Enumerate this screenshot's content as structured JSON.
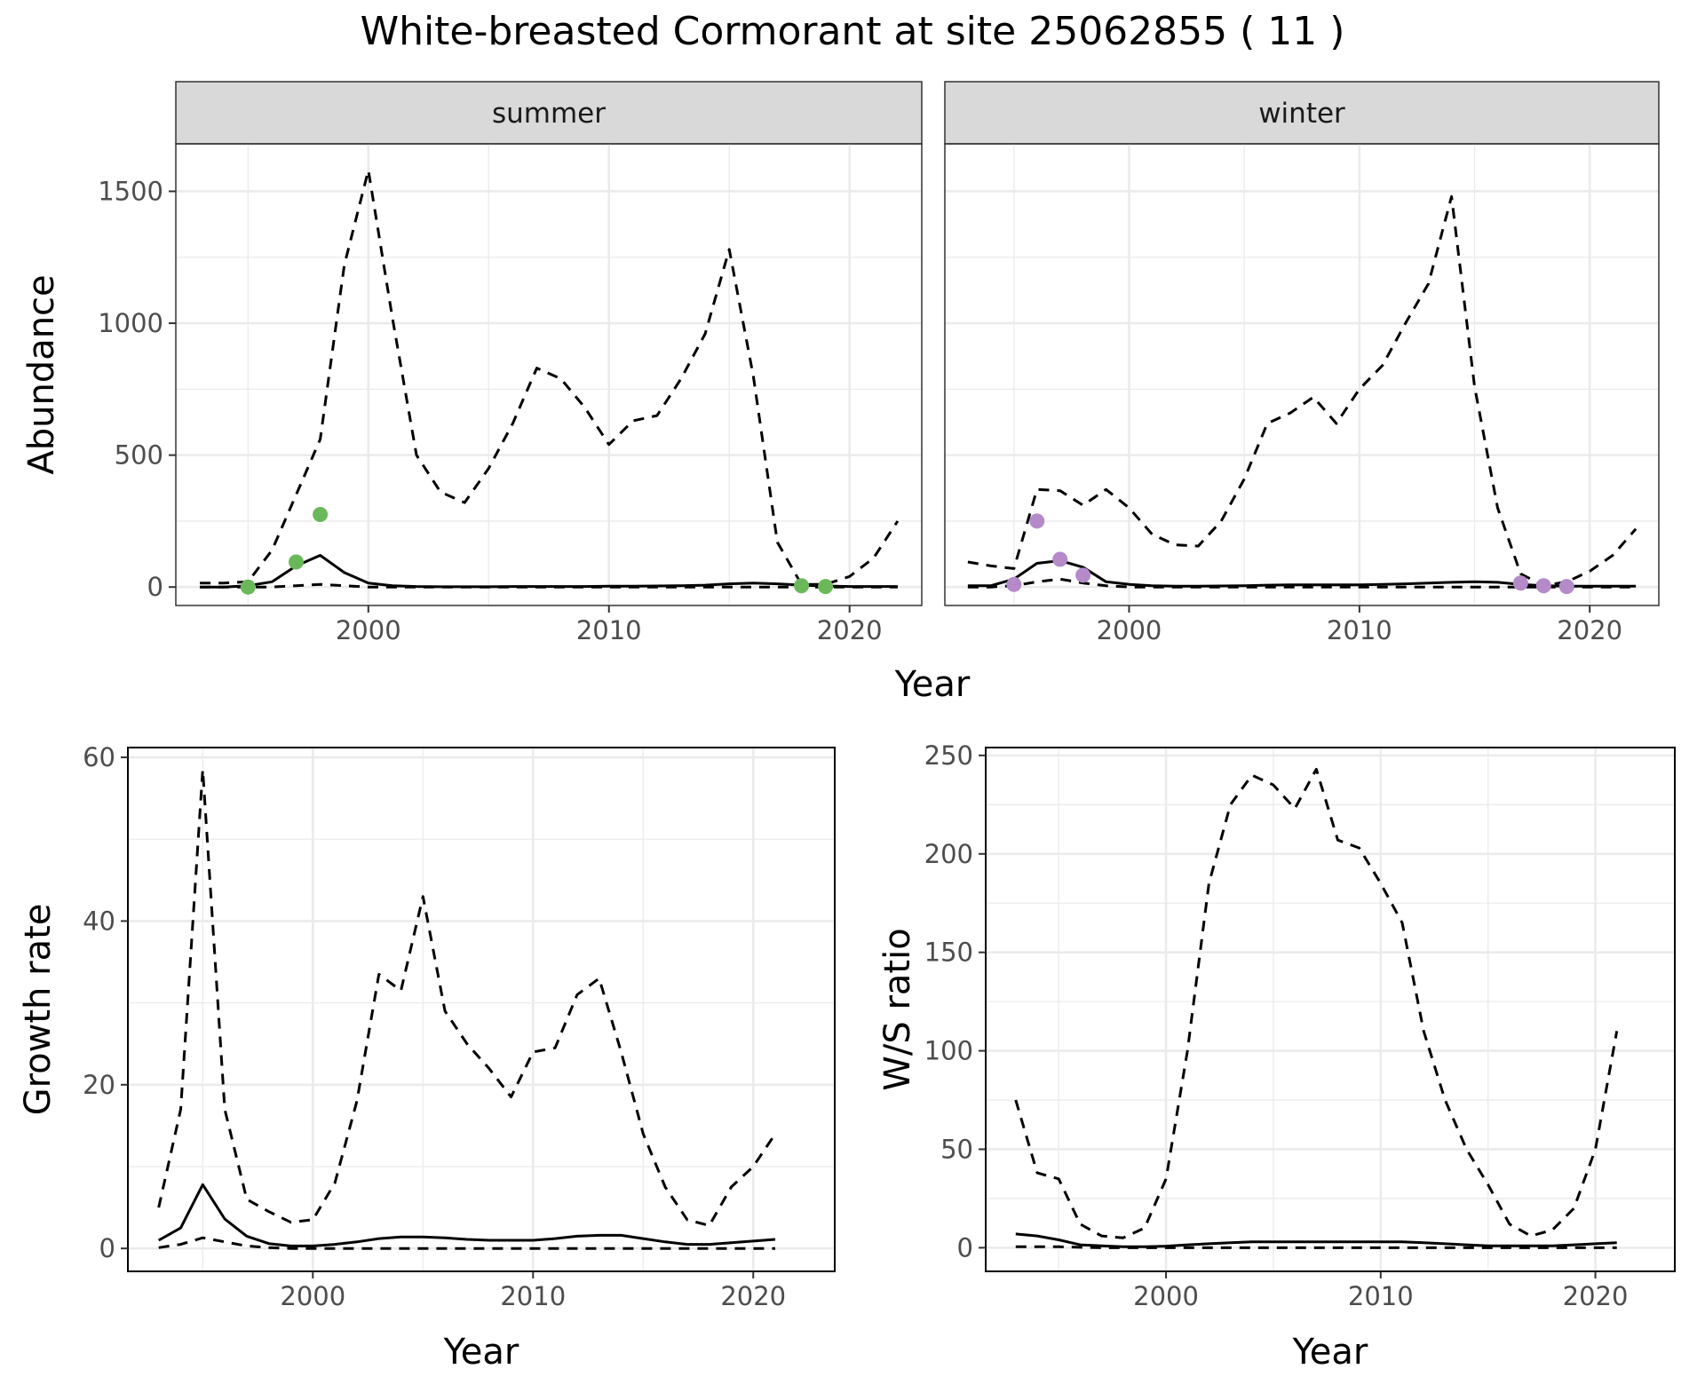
{
  "title": "White-breasted Cormorant at site 25062855 ( 11 )",
  "colors": {
    "summer_points": "#6BB85A",
    "winter_points": "#B48AC9",
    "line": "#000000",
    "grid": "#EBEBEB",
    "strip_bg": "#D9D9D9"
  },
  "chart_data": [
    {
      "id": "summer",
      "type": "line",
      "facet": "summer",
      "xlabel": "Year",
      "ylabel": "Abundance",
      "xlim": [
        1992,
        2023
      ],
      "ylim": [
        -70,
        1680
      ],
      "xticks": [
        2000,
        2010,
        2020
      ],
      "yticks": [
        0,
        500,
        1000,
        1500
      ],
      "grid": true,
      "x": [
        1993,
        1994,
        1995,
        1996,
        1997,
        1998,
        1999,
        2000,
        2001,
        2002,
        2003,
        2004,
        2005,
        2006,
        2007,
        2008,
        2009,
        2010,
        2011,
        2012,
        2013,
        2014,
        2015,
        2016,
        2017,
        2018,
        2019,
        2020,
        2021,
        2022
      ],
      "series": [
        {
          "role": "upper",
          "style": "dashed",
          "values": [
            15,
            15,
            20,
            140,
            350,
            560,
            1220,
            1580,
            1020,
            500,
            360,
            320,
            450,
            620,
            830,
            790,
            680,
            540,
            630,
            650,
            790,
            960,
            1280,
            800,
            170,
            10,
            10,
            40,
            110,
            250
          ]
        },
        {
          "role": "estimate",
          "style": "solid",
          "values": [
            0,
            0,
            5,
            20,
            80,
            120,
            55,
            15,
            5,
            2,
            1,
            1,
            1,
            2,
            2,
            2,
            2,
            3,
            3,
            4,
            5,
            7,
            12,
            15,
            12,
            7,
            4,
            2,
            2,
            2
          ]
        },
        {
          "role": "lower",
          "style": "dashed",
          "values": [
            0,
            0,
            0,
            0,
            5,
            10,
            5,
            0,
            0,
            0,
            0,
            0,
            0,
            0,
            0,
            0,
            0,
            0,
            0,
            0,
            0,
            0,
            0,
            0,
            0,
            0,
            0,
            0,
            0,
            0
          ]
        }
      ],
      "points": {
        "x": [
          1995,
          1997,
          1998,
          2018,
          2019
        ],
        "y": [
          0,
          95,
          275,
          5,
          2
        ]
      }
    },
    {
      "id": "winter",
      "type": "line",
      "facet": "winter",
      "xlabel": "Year",
      "ylabel": "",
      "xlim": [
        1992,
        2023
      ],
      "ylim": [
        -70,
        1680
      ],
      "xticks": [
        2000,
        2010,
        2020
      ],
      "yticks": [
        0,
        500,
        1000,
        1500
      ],
      "grid": true,
      "x": [
        1993,
        1994,
        1995,
        1996,
        1997,
        1998,
        1999,
        2000,
        2001,
        2002,
        2003,
        2004,
        2005,
        2006,
        2007,
        2008,
        2009,
        2010,
        2011,
        2012,
        2013,
        2014,
        2015,
        2016,
        2017,
        2018,
        2019,
        2020,
        2021,
        2022
      ],
      "series": [
        {
          "role": "upper",
          "style": "dashed",
          "values": [
            95,
            80,
            70,
            370,
            365,
            310,
            370,
            300,
            200,
            160,
            155,
            250,
            410,
            620,
            660,
            720,
            620,
            750,
            840,
            1000,
            1150,
            1480,
            760,
            300,
            50,
            5,
            20,
            60,
            120,
            220
          ]
        },
        {
          "role": "estimate",
          "style": "solid",
          "values": [
            5,
            5,
            30,
            90,
            100,
            75,
            20,
            10,
            5,
            3,
            3,
            4,
            5,
            7,
            8,
            8,
            8,
            8,
            10,
            12,
            15,
            18,
            20,
            18,
            10,
            5,
            3,
            3,
            3,
            3
          ]
        },
        {
          "role": "lower",
          "style": "dashed",
          "values": [
            0,
            0,
            5,
            20,
            30,
            15,
            5,
            0,
            0,
            0,
            0,
            0,
            0,
            0,
            0,
            0,
            0,
            0,
            0,
            0,
            0,
            0,
            0,
            0,
            0,
            0,
            0,
            0,
            0,
            0
          ]
        }
      ],
      "points": {
        "x": [
          1995,
          1996,
          1997,
          1998,
          2017,
          2018,
          2019
        ],
        "y": [
          10,
          250,
          105,
          45,
          15,
          5,
          2
        ]
      }
    },
    {
      "id": "growth",
      "type": "line",
      "xlabel": "Year",
      "ylabel": "Growth rate",
      "xlim": [
        1991.6,
        2023.7
      ],
      "ylim": [
        -2.8,
        61.2
      ],
      "xticks": [
        2000,
        2010,
        2020
      ],
      "yticks": [
        0,
        20,
        40,
        60
      ],
      "grid": true,
      "x": [
        1993,
        1994,
        1995,
        1996,
        1997,
        1998,
        1999,
        2000,
        2001,
        2002,
        2003,
        2004,
        2005,
        2006,
        2007,
        2008,
        2009,
        2010,
        2011,
        2012,
        2013,
        2014,
        2015,
        2016,
        2017,
        2018,
        2019,
        2020,
        2021
      ],
      "series": [
        {
          "role": "upper",
          "style": "dashed",
          "values": [
            5,
            17,
            58.5,
            17,
            6,
            4.5,
            3.2,
            3.5,
            8,
            18,
            33.5,
            31.5,
            43,
            29,
            25,
            22,
            18.5,
            24,
            24.5,
            31,
            33,
            24,
            14,
            7.5,
            3.5,
            2.8,
            7.5,
            10,
            14
          ]
        },
        {
          "role": "estimate",
          "style": "solid",
          "values": [
            1,
            2.5,
            7.8,
            3.6,
            1.5,
            0.6,
            0.3,
            0.3,
            0.5,
            0.8,
            1.2,
            1.4,
            1.4,
            1.3,
            1.1,
            1.0,
            1.0,
            1.0,
            1.2,
            1.5,
            1.6,
            1.6,
            1.2,
            0.8,
            0.5,
            0.5,
            0.7,
            0.9,
            1.1
          ]
        },
        {
          "role": "lower",
          "style": "dashed",
          "values": [
            0.1,
            0.5,
            1.3,
            0.8,
            0.3,
            0.1,
            0,
            0,
            0,
            0,
            0,
            0,
            0,
            0,
            0,
            0,
            0,
            0,
            0,
            0,
            0,
            0,
            0,
            0,
            0,
            0,
            0,
            0,
            0
          ]
        }
      ]
    },
    {
      "id": "ratio",
      "type": "line",
      "xlabel": "Year",
      "ylabel": "W/S ratio",
      "xlim": [
        1991.6,
        2023.7
      ],
      "ylim": [
        -12,
        254
      ],
      "xticks": [
        2000,
        2010,
        2020
      ],
      "yticks": [
        0,
        50,
        100,
        150,
        200,
        250
      ],
      "grid": true,
      "x": [
        1993,
        1994,
        1995,
        1996,
        1997,
        1998,
        1999,
        2000,
        2001,
        2002,
        2003,
        2004,
        2005,
        2006,
        2007,
        2008,
        2009,
        2010,
        2011,
        2012,
        2013,
        2014,
        2015,
        2016,
        2017,
        2018,
        2019,
        2020,
        2021
      ],
      "series": [
        {
          "role": "upper",
          "style": "dashed",
          "values": [
            75,
            38,
            35,
            12,
            6,
            5,
            10,
            35,
            100,
            185,
            225,
            240,
            235,
            223,
            243,
            207,
            203,
            185,
            165,
            110,
            75,
            50,
            32,
            12,
            6,
            9,
            20,
            50,
            110
          ]
        },
        {
          "role": "estimate",
          "style": "solid",
          "values": [
            7,
            6,
            4,
            1.5,
            1,
            0.5,
            0.5,
            0.8,
            1.5,
            2,
            2.5,
            3,
            3,
            3,
            3,
            3,
            3,
            3,
            3,
            2.5,
            2,
            1.5,
            1,
            1,
            1,
            1,
            1.5,
            2,
            2.5
          ]
        },
        {
          "role": "lower",
          "style": "dashed",
          "values": [
            0.5,
            0.5,
            0.5,
            0.2,
            0,
            0,
            0,
            0,
            0,
            0,
            0,
            0,
            0,
            0,
            0,
            0,
            0,
            0,
            0,
            0,
            0,
            0,
            0,
            0,
            0,
            0,
            0,
            0,
            0
          ]
        }
      ]
    }
  ]
}
